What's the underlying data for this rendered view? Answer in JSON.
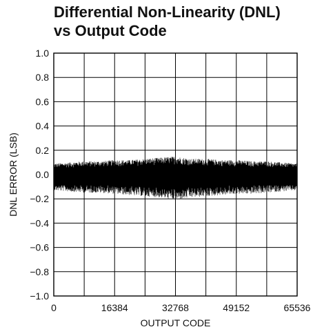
{
  "chart_data": {
    "type": "line",
    "title": [
      "Differential Non-Linearity (DNL)",
      "vs Output Code"
    ],
    "xlabel": "OUTPUT CODE",
    "ylabel": "DNL ERROR (LSB)",
    "xlim": [
      0,
      65536
    ],
    "ylim": [
      -1.0,
      1.0
    ],
    "xticks": [
      0,
      16384,
      32768,
      49152,
      65536
    ],
    "xtick_labels": [
      "0",
      "16384",
      "32768",
      "49152",
      "65536"
    ],
    "yticks": [
      1.0,
      0.8,
      0.6,
      0.4,
      0.2,
      0.0,
      -0.2,
      -0.4,
      -0.6,
      -0.8,
      -1.0
    ],
    "ytick_labels": [
      "1.0",
      "0.8",
      "0.6",
      "0.4",
      "0.2",
      "0.0",
      "−0.2",
      "−0.4",
      "−0.6",
      "−0.8",
      "−1.0"
    ],
    "grid": true,
    "series": [
      {
        "x": [
          0,
          4096,
          8192,
          12288,
          16384,
          20480,
          24576,
          28672,
          32768,
          36864,
          40960,
          45056,
          49152,
          53248,
          57344,
          61440,
          65536
        ],
        "y_max": [
          0.09,
          0.1,
          0.11,
          0.11,
          0.12,
          0.12,
          0.13,
          0.14,
          0.15,
          0.13,
          0.13,
          0.12,
          0.12,
          0.11,
          0.11,
          0.1,
          0.09
        ],
        "y_min": [
          -0.13,
          -0.14,
          -0.15,
          -0.15,
          -0.16,
          -0.17,
          -0.18,
          -0.19,
          -0.21,
          -0.19,
          -0.18,
          -0.17,
          -0.16,
          -0.16,
          -0.15,
          -0.14,
          -0.13
        ],
        "color": "#000000"
      }
    ]
  }
}
